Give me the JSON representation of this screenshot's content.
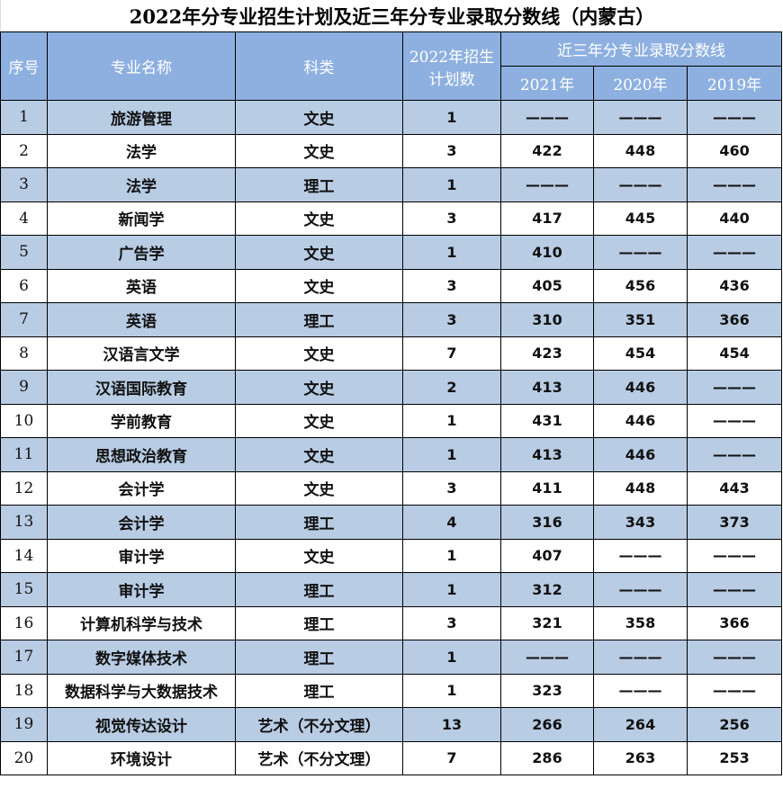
{
  "title": "2022年分专业招生计划及近三年分专业录取分数线（内蒙古）",
  "headers": {
    "index": "序号",
    "major": "专业名称",
    "category": "科类",
    "plan": "2022年招生计划数",
    "scores_group": "近三年分专业录取分数线",
    "years": [
      "2021年",
      "2020年",
      "2019年"
    ]
  },
  "colors": {
    "header_bg": "#8eb0e0",
    "stripe_bg": "#b8cce4"
  },
  "rows": [
    {
      "no": "1",
      "major": "旅游管理",
      "cat": "文史",
      "plan": "1",
      "s2021": "———",
      "s2020": "———",
      "s2019": "———"
    },
    {
      "no": "2",
      "major": "法学",
      "cat": "文史",
      "plan": "3",
      "s2021": "422",
      "s2020": "448",
      "s2019": "460"
    },
    {
      "no": "3",
      "major": "法学",
      "cat": "理工",
      "plan": "1",
      "s2021": "———",
      "s2020": "———",
      "s2019": "———"
    },
    {
      "no": "4",
      "major": "新闻学",
      "cat": "文史",
      "plan": "3",
      "s2021": "417",
      "s2020": "445",
      "s2019": "440"
    },
    {
      "no": "5",
      "major": "广告学",
      "cat": "文史",
      "plan": "1",
      "s2021": "410",
      "s2020": "———",
      "s2019": "———"
    },
    {
      "no": "6",
      "major": "英语",
      "cat": "文史",
      "plan": "3",
      "s2021": "405",
      "s2020": "456",
      "s2019": "436"
    },
    {
      "no": "7",
      "major": "英语",
      "cat": "理工",
      "plan": "3",
      "s2021": "310",
      "s2020": "351",
      "s2019": "366"
    },
    {
      "no": "8",
      "major": "汉语言文学",
      "cat": "文史",
      "plan": "7",
      "s2021": "423",
      "s2020": "454",
      "s2019": "454"
    },
    {
      "no": "9",
      "major": "汉语国际教育",
      "cat": "文史",
      "plan": "2",
      "s2021": "413",
      "s2020": "446",
      "s2019": "———"
    },
    {
      "no": "10",
      "major": "学前教育",
      "cat": "文史",
      "plan": "1",
      "s2021": "431",
      "s2020": "446",
      "s2019": "———"
    },
    {
      "no": "11",
      "major": "思想政治教育",
      "cat": "文史",
      "plan": "1",
      "s2021": "413",
      "s2020": "446",
      "s2019": "———"
    },
    {
      "no": "12",
      "major": "会计学",
      "cat": "文史",
      "plan": "3",
      "s2021": "411",
      "s2020": "448",
      "s2019": "443"
    },
    {
      "no": "13",
      "major": "会计学",
      "cat": "理工",
      "plan": "4",
      "s2021": "316",
      "s2020": "343",
      "s2019": "373"
    },
    {
      "no": "14",
      "major": "审计学",
      "cat": "文史",
      "plan": "1",
      "s2021": "407",
      "s2020": "———",
      "s2019": "———"
    },
    {
      "no": "15",
      "major": "审计学",
      "cat": "理工",
      "plan": "1",
      "s2021": "312",
      "s2020": "———",
      "s2019": "———"
    },
    {
      "no": "16",
      "major": "计算机科学与技术",
      "cat": "理工",
      "plan": "3",
      "s2021": "321",
      "s2020": "358",
      "s2019": "366"
    },
    {
      "no": "17",
      "major": "数字媒体技术",
      "cat": "理工",
      "plan": "1",
      "s2021": "———",
      "s2020": "———",
      "s2019": "———"
    },
    {
      "no": "18",
      "major": "数据科学与大数据技术",
      "cat": "理工",
      "plan": "1",
      "s2021": "323",
      "s2020": "———",
      "s2019": "———"
    },
    {
      "no": "19",
      "major": "视觉传达设计",
      "cat": "艺术（不分文理）",
      "plan": "13",
      "s2021": "266",
      "s2020": "264",
      "s2019": "256"
    },
    {
      "no": "20",
      "major": "环境设计",
      "cat": "艺术（不分文理）",
      "plan": "7",
      "s2021": "286",
      "s2020": "263",
      "s2019": "253"
    }
  ]
}
